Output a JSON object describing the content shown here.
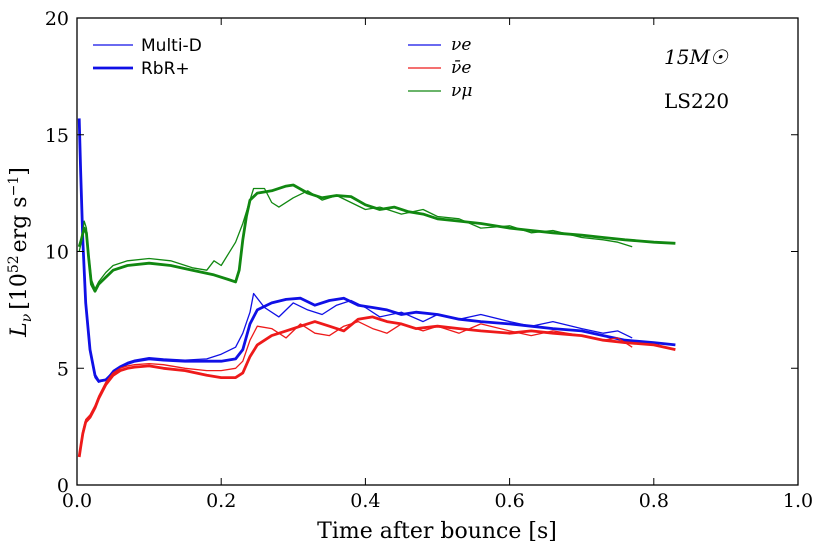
{
  "chart_data": {
    "type": "line",
    "xlabel": "Time after bounce [s]",
    "ylabel": "L_ν [10^52 erg s^-1]",
    "xlim": [
      0,
      1.0
    ],
    "ylim": [
      0,
      20
    ],
    "xticks": [
      "0.0",
      "0.2",
      "0.4",
      "0.6",
      "0.8",
      "1.0"
    ],
    "yticks": [
      "0",
      "5",
      "10",
      "15",
      "20"
    ],
    "annotations": {
      "mass": "15M☉",
      "eos": "LS220"
    },
    "legend_method": [
      {
        "label": "Multi-D",
        "style": "thin"
      },
      {
        "label": "RbR+",
        "style": "thick"
      }
    ],
    "legend_species": [
      {
        "label": "νe",
        "color": "#1010e6"
      },
      {
        "label": "ν̄e",
        "color": "#ee1a1a"
      },
      {
        "label": "νμ",
        "color": "#118811"
      }
    ],
    "series": [
      {
        "name": "νe RbR+",
        "method": "RbR+",
        "species": "nu_e",
        "color": "#1010e6",
        "x": [
          0.003,
          0.005,
          0.008,
          0.012,
          0.018,
          0.025,
          0.03,
          0.04,
          0.05,
          0.06,
          0.07,
          0.08,
          0.1,
          0.12,
          0.15,
          0.18,
          0.2,
          0.22,
          0.23,
          0.24,
          0.25,
          0.27,
          0.29,
          0.31,
          0.33,
          0.35,
          0.37,
          0.39,
          0.41,
          0.43,
          0.45,
          0.47,
          0.5,
          0.53,
          0.56,
          0.6,
          0.63,
          0.66,
          0.7,
          0.73,
          0.76,
          0.8,
          0.83
        ],
        "y": [
          15.7,
          13.5,
          10.5,
          7.8,
          5.8,
          4.7,
          4.45,
          4.5,
          4.8,
          5.05,
          5.2,
          5.3,
          5.4,
          5.35,
          5.3,
          5.3,
          5.3,
          5.4,
          5.8,
          6.9,
          7.5,
          7.8,
          7.95,
          8.0,
          7.7,
          7.9,
          8.0,
          7.7,
          7.6,
          7.5,
          7.3,
          7.4,
          7.3,
          7.1,
          7.0,
          6.9,
          6.8,
          6.7,
          6.6,
          6.4,
          6.2,
          6.1,
          6.0
        ]
      },
      {
        "name": "νe Multi-D",
        "method": "Multi-D",
        "species": "nu_e",
        "color": "#1010e6",
        "x": [
          0.003,
          0.005,
          0.008,
          0.012,
          0.018,
          0.025,
          0.03,
          0.04,
          0.05,
          0.06,
          0.07,
          0.08,
          0.1,
          0.12,
          0.15,
          0.18,
          0.2,
          0.22,
          0.23,
          0.24,
          0.245,
          0.26,
          0.28,
          0.3,
          0.32,
          0.34,
          0.36,
          0.38,
          0.4,
          0.42,
          0.45,
          0.48,
          0.5,
          0.53,
          0.56,
          0.6,
          0.63,
          0.66,
          0.7,
          0.73,
          0.75,
          0.77
        ],
        "y": [
          15.5,
          13.3,
          10.3,
          7.7,
          5.7,
          4.6,
          4.4,
          4.5,
          4.9,
          5.1,
          5.25,
          5.35,
          5.45,
          5.4,
          5.35,
          5.4,
          5.6,
          5.9,
          6.5,
          7.4,
          8.2,
          7.6,
          7.2,
          7.8,
          7.5,
          7.3,
          7.7,
          7.9,
          7.6,
          7.2,
          7.4,
          7.0,
          7.3,
          7.1,
          7.3,
          7.0,
          6.8,
          7.0,
          6.7,
          6.5,
          6.6,
          6.3
        ]
      },
      {
        "name": "ν̄e RbR+",
        "method": "RbR+",
        "species": "nubar_e",
        "color": "#ee1a1a",
        "x": [
          0.003,
          0.005,
          0.008,
          0.012,
          0.018,
          0.025,
          0.03,
          0.04,
          0.05,
          0.06,
          0.07,
          0.08,
          0.1,
          0.12,
          0.15,
          0.18,
          0.2,
          0.22,
          0.23,
          0.24,
          0.25,
          0.27,
          0.29,
          0.31,
          0.33,
          0.35,
          0.37,
          0.39,
          0.41,
          0.43,
          0.45,
          0.47,
          0.5,
          0.53,
          0.56,
          0.6,
          0.63,
          0.66,
          0.7,
          0.73,
          0.76,
          0.8,
          0.83
        ],
        "y": [
          1.2,
          1.6,
          2.2,
          2.7,
          2.9,
          3.3,
          3.7,
          4.3,
          4.7,
          4.9,
          5.0,
          5.05,
          5.1,
          5.0,
          4.9,
          4.7,
          4.6,
          4.6,
          4.8,
          5.5,
          6.0,
          6.4,
          6.6,
          6.8,
          7.0,
          6.8,
          6.6,
          7.1,
          7.2,
          7.0,
          6.9,
          6.7,
          6.8,
          6.7,
          6.6,
          6.5,
          6.6,
          6.5,
          6.4,
          6.2,
          6.1,
          6.0,
          5.8
        ]
      },
      {
        "name": "ν̄e Multi-D",
        "method": "Multi-D",
        "species": "nubar_e",
        "color": "#ee1a1a",
        "x": [
          0.003,
          0.005,
          0.008,
          0.012,
          0.018,
          0.025,
          0.03,
          0.04,
          0.05,
          0.06,
          0.07,
          0.08,
          0.1,
          0.12,
          0.15,
          0.18,
          0.2,
          0.22,
          0.23,
          0.24,
          0.25,
          0.27,
          0.29,
          0.31,
          0.33,
          0.35,
          0.37,
          0.39,
          0.41,
          0.43,
          0.45,
          0.48,
          0.5,
          0.53,
          0.56,
          0.6,
          0.63,
          0.66,
          0.7,
          0.73,
          0.75,
          0.77
        ],
        "y": [
          1.3,
          1.7,
          2.3,
          2.8,
          3.0,
          3.4,
          3.8,
          4.4,
          4.8,
          5.0,
          5.1,
          5.15,
          5.2,
          5.15,
          5.0,
          4.9,
          4.9,
          5.0,
          5.3,
          6.2,
          6.8,
          6.7,
          6.3,
          6.9,
          6.5,
          6.4,
          6.8,
          7.0,
          6.7,
          6.5,
          6.9,
          6.6,
          6.8,
          6.5,
          6.9,
          6.6,
          6.4,
          6.6,
          6.4,
          6.2,
          6.3,
          5.9
        ]
      },
      {
        "name": "νμ RbR+",
        "method": "RbR+",
        "species": "nu_mu",
        "color": "#118811",
        "x": [
          0.003,
          0.006,
          0.01,
          0.013,
          0.016,
          0.02,
          0.025,
          0.03,
          0.04,
          0.05,
          0.07,
          0.1,
          0.13,
          0.16,
          0.19,
          0.21,
          0.22,
          0.225,
          0.23,
          0.235,
          0.24,
          0.25,
          0.27,
          0.29,
          0.3,
          0.32,
          0.34,
          0.36,
          0.38,
          0.4,
          0.42,
          0.44,
          0.46,
          0.48,
          0.5,
          0.53,
          0.56,
          0.6,
          0.63,
          0.66,
          0.7,
          0.73,
          0.76,
          0.8,
          0.83
        ],
        "y": [
          10.2,
          10.5,
          11.0,
          10.8,
          9.8,
          8.6,
          8.3,
          8.6,
          8.9,
          9.2,
          9.4,
          9.5,
          9.4,
          9.2,
          9.0,
          8.8,
          8.7,
          9.2,
          10.5,
          11.5,
          12.2,
          12.5,
          12.6,
          12.8,
          12.85,
          12.5,
          12.3,
          12.4,
          12.35,
          12.0,
          11.8,
          11.9,
          11.7,
          11.6,
          11.4,
          11.3,
          11.2,
          11.0,
          10.9,
          10.8,
          10.7,
          10.6,
          10.5,
          10.4,
          10.35
        ]
      },
      {
        "name": "νμ Multi-D",
        "method": "Multi-D",
        "species": "nu_mu",
        "color": "#118811",
        "x": [
          0.003,
          0.006,
          0.01,
          0.013,
          0.016,
          0.02,
          0.025,
          0.03,
          0.04,
          0.05,
          0.07,
          0.1,
          0.13,
          0.16,
          0.18,
          0.19,
          0.2,
          0.21,
          0.22,
          0.23,
          0.24,
          0.245,
          0.26,
          0.27,
          0.28,
          0.3,
          0.32,
          0.34,
          0.36,
          0.38,
          0.4,
          0.42,
          0.45,
          0.48,
          0.5,
          0.53,
          0.56,
          0.6,
          0.63,
          0.66,
          0.7,
          0.73,
          0.75,
          0.77
        ],
        "y": [
          10.0,
          10.4,
          11.3,
          11.0,
          10.0,
          8.8,
          8.4,
          8.7,
          9.1,
          9.4,
          9.6,
          9.7,
          9.6,
          9.3,
          9.2,
          9.6,
          9.4,
          9.9,
          10.4,
          11.2,
          12.2,
          12.7,
          12.7,
          12.1,
          11.9,
          12.3,
          12.6,
          12.2,
          12.4,
          12.1,
          11.8,
          11.9,
          11.6,
          11.8,
          11.5,
          11.4,
          11.0,
          11.1,
          10.8,
          10.9,
          10.6,
          10.5,
          10.4,
          10.2
        ]
      }
    ]
  }
}
